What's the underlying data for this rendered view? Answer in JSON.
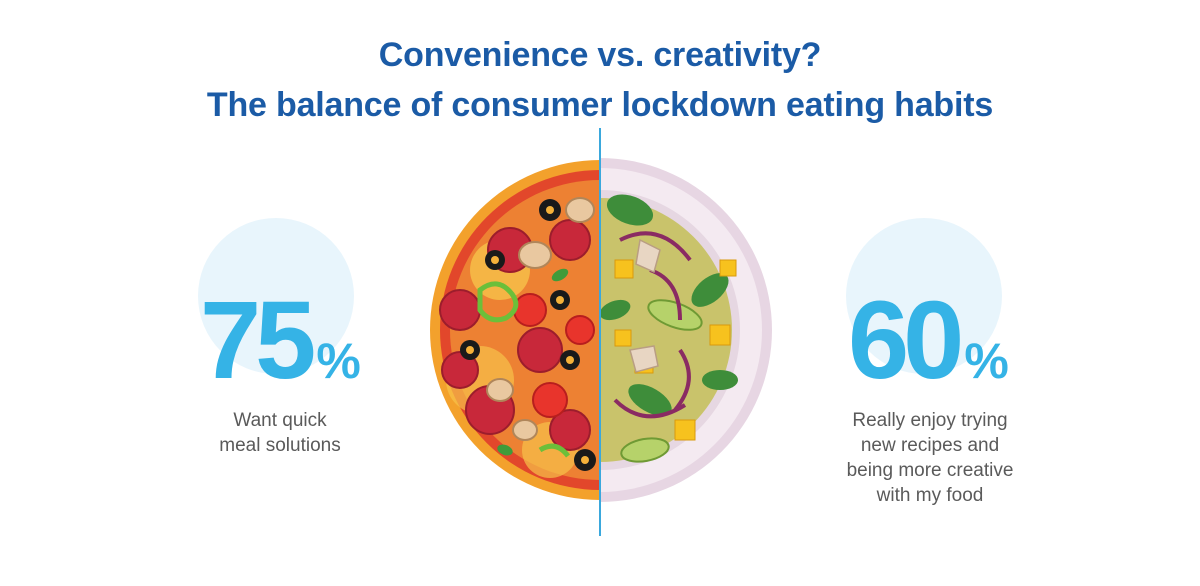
{
  "title": {
    "line1": "Convenience vs. creativity?",
    "line2": "The balance of consumer lockdown eating habits"
  },
  "left": {
    "value": "75",
    "unit": "%",
    "caption_lines": [
      "Want quick",
      "meal solutions"
    ],
    "illustration": "pizza-half"
  },
  "right": {
    "value": "60",
    "unit": "%",
    "caption_lines": [
      "Really enjoy trying",
      "new recipes and",
      "being more creative",
      "with my food"
    ],
    "illustration": "salad-plate-half"
  },
  "colors": {
    "title": "#1b5ba6",
    "stat": "#35b3e6",
    "bubble": "#e8f5fc",
    "caption": "#5a5a5a",
    "divider": "#3aa8dd"
  }
}
